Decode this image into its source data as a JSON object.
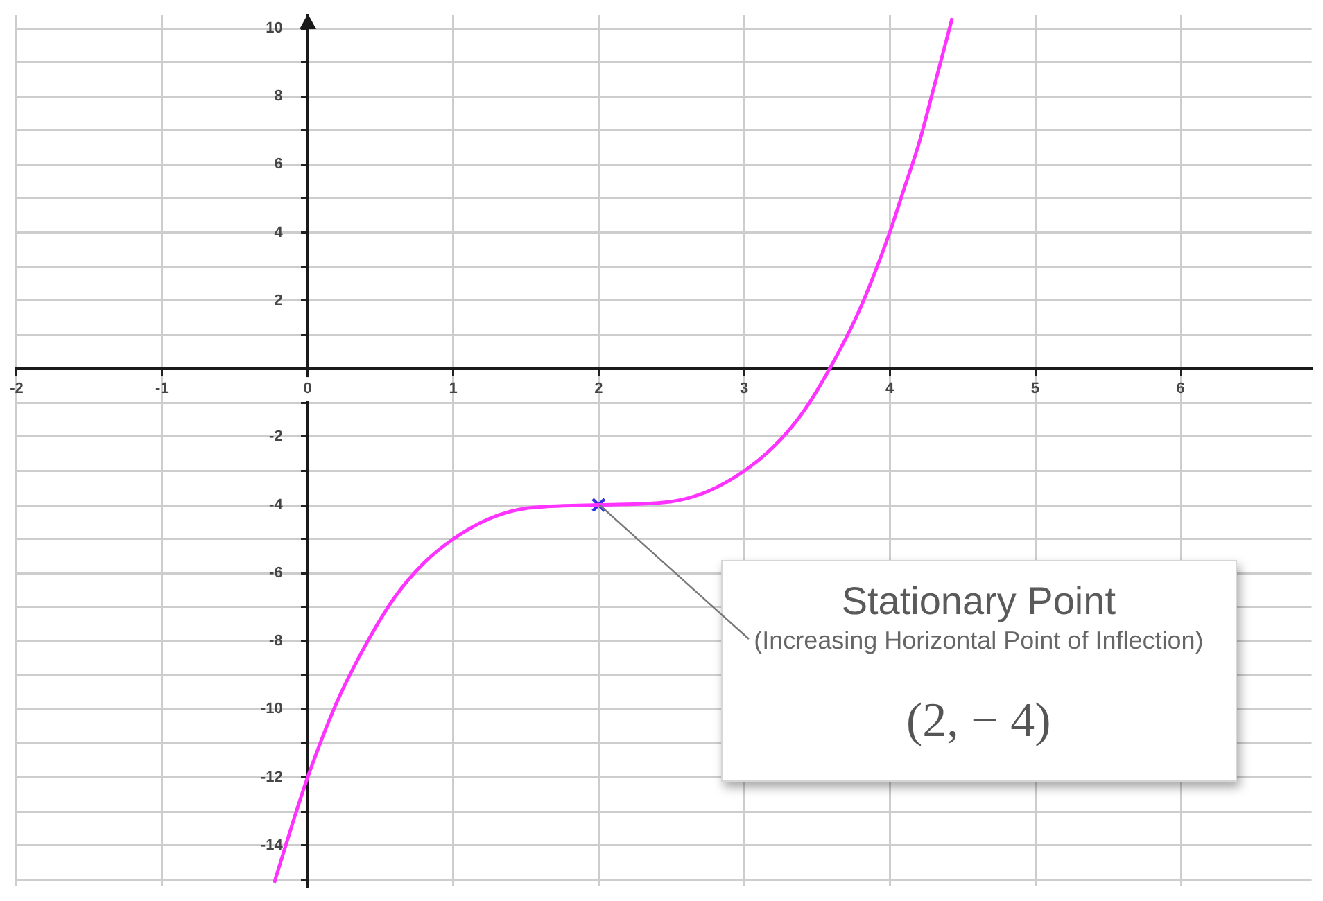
{
  "chart_data": {
    "type": "line",
    "xlim": [
      -2,
      6.9
    ],
    "ylim": [
      -15.2,
      10.4
    ],
    "xticks": [
      -2,
      -1,
      0,
      1,
      2,
      3,
      4,
      5,
      6
    ],
    "yticks": [
      {
        "value": -15,
        "label": null
      },
      -14,
      {
        "value": -13,
        "label": null
      },
      -12,
      {
        "value": -11,
        "label": null
      },
      -10,
      {
        "value": -9,
        "label": null
      },
      -8,
      {
        "value": -7,
        "label": null
      },
      -6,
      {
        "value": -5,
        "label": null
      },
      -4,
      {
        "value": -3,
        "label": null
      },
      -2,
      {
        "value": -1,
        "label": null
      },
      {
        "value": 0,
        "label": null
      },
      {
        "value": 1,
        "label": null
      },
      2,
      {
        "value": 3,
        "label": null
      },
      4,
      {
        "value": 5,
        "label": null
      },
      6,
      {
        "value": 7,
        "label": null
      },
      8,
      {
        "value": 9,
        "label": null
      },
      10
    ],
    "grid": true,
    "series": [
      {
        "type": "line",
        "color": "#ff33ff",
        "marker": "none",
        "x": [
          -0.23,
          -0.1,
          0,
          0.2,
          0.4,
          0.6,
          0.8,
          1,
          1.25,
          1.5,
          2,
          2.5,
          2.75,
          3,
          3.2,
          3.4,
          3.6,
          3.8,
          4,
          4.1,
          4.2,
          4.3,
          4.43
        ],
        "values": [
          -15.1,
          -13.3,
          -12,
          -9.8,
          -8.1,
          -6.7,
          -5.7,
          -5,
          -4.4,
          -4.1,
          -4,
          -3.9,
          -3.6,
          -3,
          -2.3,
          -1.3,
          0.1,
          1.8,
          4,
          5.3,
          6.6,
          8.2,
          10.3
        ]
      },
      {
        "type": "scatter",
        "color": "#3030e0",
        "marker": "cross",
        "x": [
          2
        ],
        "values": [
          -4
        ]
      }
    ],
    "annotations": [
      "Stationary Point",
      {
        "text": "(Increasing Horizontal Point of Inflection)",
        "x": 2,
        "y": -4
      },
      "(2, − 4)"
    ]
  }
}
